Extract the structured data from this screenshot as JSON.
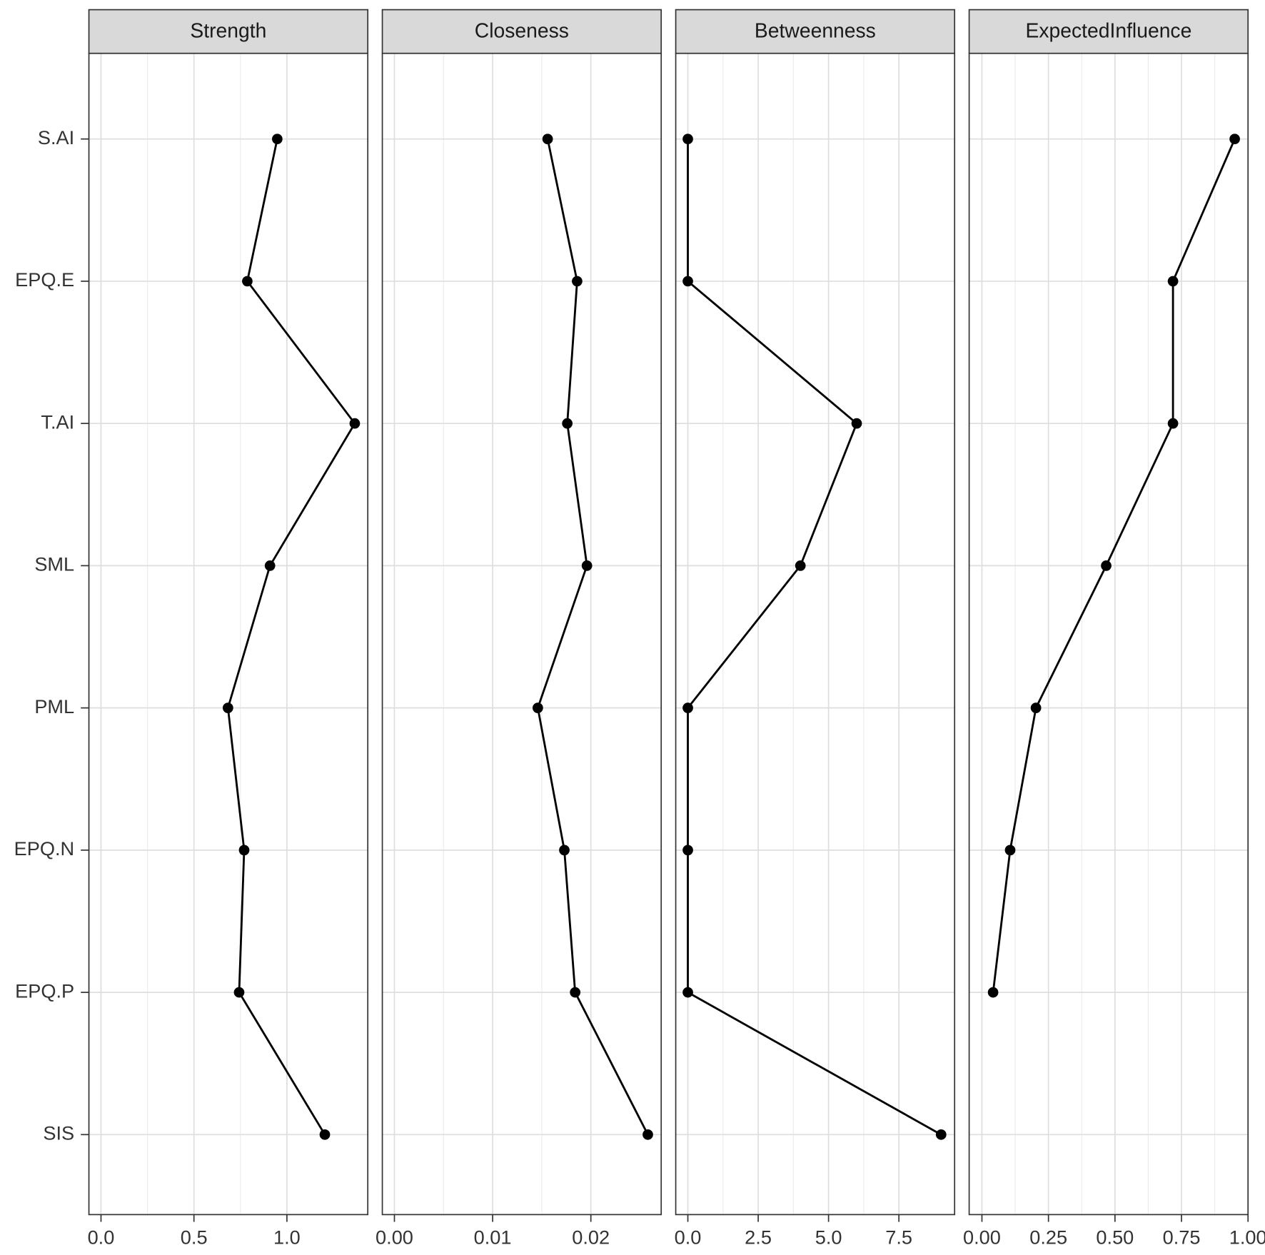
{
  "chart_data": [
    {
      "type": "line",
      "title": "Strength",
      "categories": [
        "S.AI",
        "EPQ.E",
        "T.AI",
        "SML",
        "PML",
        "EPQ.N",
        "EPQ.P",
        "SIS"
      ],
      "values": [
        0.948,
        0.787,
        1.365,
        0.909,
        0.683,
        0.77,
        0.743,
        1.204
      ],
      "xlim": [
        -0.065,
        1.435
      ],
      "xticks": [
        {
          "value": 0,
          "label": "0.0"
        },
        0.5,
        {
          "value": 1,
          "label": "1.0"
        }
      ],
      "color": "#000000",
      "grid": true
    },
    {
      "type": "line",
      "title": "Closeness",
      "values": [
        0.0156,
        0.0186,
        0.0176,
        0.0196,
        0.0146,
        0.0173,
        0.0184,
        0.0258
      ],
      "xlim": [
        -0.00123,
        0.02716
      ],
      "xticks": [
        {
          "value": 0,
          "label": "0.00"
        },
        0.01,
        0.02
      ],
      "color": "#000000",
      "grid": true
    },
    {
      "type": "line",
      "title": "Betweenness",
      "values": [
        0,
        0,
        6,
        4,
        0,
        0,
        0,
        9
      ],
      "xlim": [
        -0.43,
        9.48
      ],
      "xticks": [
        {
          "value": 0,
          "label": "0.0"
        },
        2.5,
        {
          "value": 5,
          "label": "5.0"
        },
        7.5
      ],
      "color": "#000000",
      "grid": true
    },
    {
      "type": "line",
      "title": "ExpectedInfluence",
      "values": [
        0.95,
        0.718,
        0.718,
        0.467,
        0.203,
        0.106,
        0.042,
        null
      ],
      "xlim": [
        -0.048,
        1.0
      ],
      "xticks": [
        {
          "value": 0,
          "label": "0.00"
        },
        0.25,
        {
          "value": 0.5,
          "label": "0.50"
        },
        0.75,
        {
          "value": 1,
          "label": "1.00"
        }
      ],
      "color": "#000000",
      "grid": true
    }
  ]
}
